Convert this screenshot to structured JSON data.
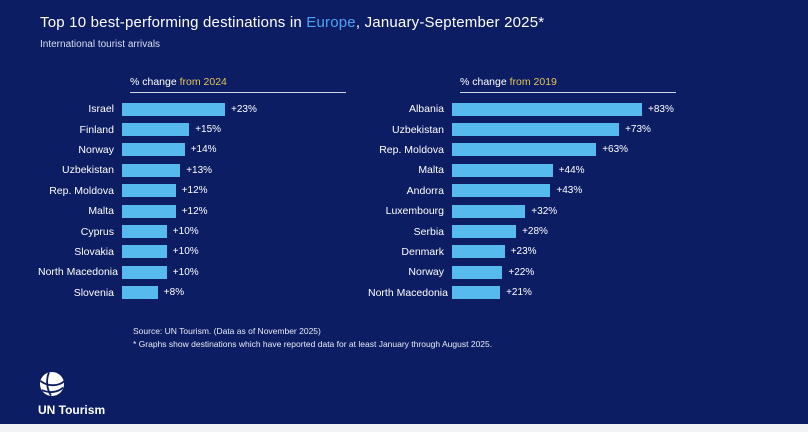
{
  "colors": {
    "background": "#0d1d64",
    "bar": "#56baee",
    "title_highlight": "#4da3f5",
    "header_accent": "#e3c355"
  },
  "title": {
    "prefix": "Top 10 best-performing destinations in ",
    "highlight": "Europe",
    "suffix": ", January-September 2025*",
    "subtitle": "International tourist arrivals"
  },
  "footer": {
    "source": "Source: UN Tourism. (Data as of November 2025)",
    "note": "* Graphs show destinations which have reported data for at least January through August 2025."
  },
  "logo": {
    "label": "UN Tourism"
  },
  "chart_data": [
    {
      "type": "bar",
      "orientation": "horizontal",
      "title": "% change from 2024",
      "title_plain": "% change",
      "title_accent": "from 2024",
      "categories": [
        "Israel",
        "Finland",
        "Norway",
        "Uzbekistan",
        "Rep. Moldova",
        "Malta",
        "Cyprus",
        "Slovakia",
        "North Macedonia",
        "Slovenia"
      ],
      "values": [
        23,
        15,
        14,
        13,
        12,
        12,
        10,
        10,
        10,
        8
      ],
      "value_labels": [
        "+23%",
        "+15%",
        "+14%",
        "+13%",
        "+12%",
        "+12%",
        "+10%",
        "+10%",
        "+10%",
        "+8%"
      ],
      "xlim": [
        0,
        25
      ],
      "grid": false,
      "legend": "none"
    },
    {
      "type": "bar",
      "orientation": "horizontal",
      "title": "% change from 2019",
      "title_plain": "% change",
      "title_accent": "from 2019",
      "categories": [
        "Albania",
        "Uzbekistan",
        "Rep. Moldova",
        "Malta",
        "Andorra",
        "Luxembourg",
        "Serbia",
        "Denmark",
        "Norway",
        "North Macedonia"
      ],
      "values": [
        83,
        73,
        63,
        44,
        43,
        32,
        28,
        23,
        22,
        21
      ],
      "value_labels": [
        "+83%",
        "+73%",
        "+63%",
        "+44%",
        "+43%",
        "+32%",
        "+28%",
        "+23%",
        "+22%",
        "+21%"
      ],
      "xlim": [
        0,
        90
      ],
      "grid": false,
      "legend": "none"
    }
  ]
}
